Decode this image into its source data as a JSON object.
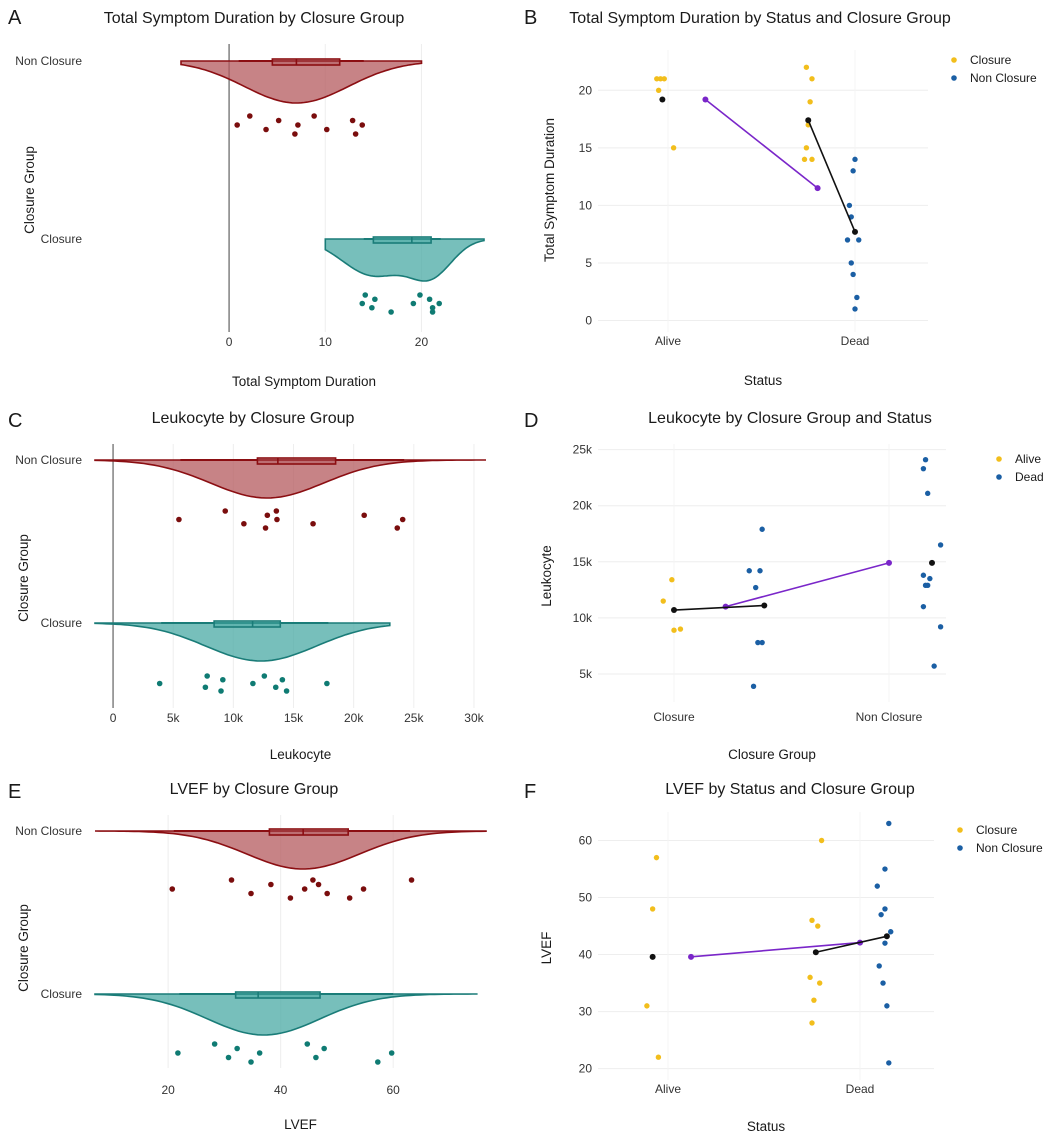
{
  "colors": {
    "non_closure_fill": "#b45a5e",
    "non_closure_line": "#8b0e12",
    "non_closure_dot": "#7a0d0d",
    "closure_fill": "#4aa9a4",
    "closure_line": "#1a7c78",
    "closure_dot": "#0f7b73",
    "yellow": "#f2be1c",
    "blue": "#1b5fa4",
    "purple": "#7a26c9",
    "black": "#111111",
    "grid": "#eeeeee"
  },
  "chart_data": [
    {
      "panel": "A",
      "type": "raincloud",
      "title": "Total Symptom Duration by Closure Group",
      "xlabel": "Total Symptom Duration",
      "ylabel": "Closure Group",
      "xlim": [
        -13,
        26.5
      ],
      "xticks": [
        {
          "v": 0,
          "label": "0"
        },
        {
          "v": 10,
          "label": "10"
        },
        {
          "v": 20,
          "label": "20"
        }
      ],
      "vline": 0,
      "groups": [
        {
          "name": "Non Closure",
          "style": "non_closure",
          "curve_x": [
            -5,
            20
          ],
          "peak": 7,
          "sd": 5.4,
          "whisker": [
            1,
            14
          ],
          "box": [
            4.5,
            11.5
          ],
          "median": 7,
          "points": [
            1,
            2,
            4,
            5,
            7,
            7,
            9,
            10,
            13,
            13,
            14
          ]
        },
        {
          "name": "Closure",
          "style": "closure",
          "curve_x": [
            10,
            26.5
          ],
          "peak": 15,
          "sd": 3.2,
          "peak2": 21,
          "sd2": 2.2,
          "w2": 0.95,
          "whisker": [
            14,
            22
          ],
          "box": [
            15,
            21
          ],
          "median": 19,
          "points": [
            14,
            14,
            15,
            15,
            17,
            19,
            20,
            21,
            21,
            21,
            22
          ]
        }
      ]
    },
    {
      "panel": "B",
      "type": "scatter",
      "title": "Total Symptom Duration by Status and Closure Group",
      "xlabel": "Status",
      "ylabel": "Total Symptom Duration",
      "categories": [
        "Alive",
        "Dead"
      ],
      "ylim": [
        -1,
        23.5
      ],
      "yticks": [
        0,
        5,
        10,
        15,
        20
      ],
      "legend": [
        {
          "label": "Closure",
          "color": "yellow"
        },
        {
          "label": "Non Closure",
          "color": "blue"
        }
      ],
      "series": [
        {
          "color": "yellow",
          "points": [
            [
              -0.06,
              21
            ],
            [
              -0.04,
              21
            ],
            [
              -0.02,
              21
            ],
            [
              -0.05,
              20
            ],
            [
              0.03,
              15
            ],
            [
              0.74,
              22
            ],
            [
              0.77,
              21
            ],
            [
              0.76,
              19
            ],
            [
              0.75,
              17
            ],
            [
              0.74,
              15
            ],
            [
              0.73,
              14
            ],
            [
              0.77,
              14
            ]
          ]
        },
        {
          "color": "blue",
          "points": [
            [
              1.0,
              14
            ],
            [
              0.99,
              13
            ],
            [
              0.97,
              10
            ],
            [
              0.98,
              9
            ],
            [
              0.96,
              7
            ],
            [
              1.02,
              7
            ],
            [
              0.98,
              5
            ],
            [
              0.99,
              4
            ],
            [
              1.01,
              2
            ],
            [
              1.0,
              1
            ]
          ]
        }
      ],
      "lines": [
        {
          "color": "purple",
          "points": [
            [
              0.2,
              19.2
            ],
            [
              0.8,
              11.5
            ]
          ]
        },
        {
          "color": "black",
          "points": [
            [
              0.75,
              17.4
            ],
            [
              1.0,
              7.7
            ]
          ]
        }
      ],
      "means": [
        {
          "x": -0.03,
          "y": 19.2
        }
      ]
    },
    {
      "panel": "C",
      "type": "raincloud",
      "title": "Leukocyte by Closure Group",
      "xlabel": "Leukocyte",
      "ylabel": "Closure Group",
      "xlim": [
        -1500,
        31000
      ],
      "xticks": [
        {
          "v": 0,
          "label": "0"
        },
        {
          "v": 5000,
          "label": "5k"
        },
        {
          "v": 10000,
          "label": "10k"
        },
        {
          "v": 15000,
          "label": "15k"
        },
        {
          "v": 20000,
          "label": "20k"
        },
        {
          "v": 25000,
          "label": "25k"
        },
        {
          "v": 30000,
          "label": "30k"
        }
      ],
      "vline": 0,
      "groups": [
        {
          "name": "Non Closure",
          "style": "non_closure",
          "curve_x": [
            -1500,
            31000
          ],
          "peak": 12800,
          "sd": 4700,
          "whisker": [
            5600,
            24200
          ],
          "box": [
            12000,
            18500
          ],
          "median": 13700,
          "points": [
            5600,
            9200,
            11000,
            12700,
            12800,
            13500,
            13700,
            16500,
            21000,
            23500,
            24200
          ]
        },
        {
          "name": "Closure",
          "style": "closure",
          "curve_x": [
            -1500,
            23000
          ],
          "peak": 12300,
          "sd": 4600,
          "whisker": [
            4000,
            17900
          ],
          "box": [
            8400,
            13900
          ],
          "median": 11600,
          "points": [
            4000,
            7700,
            7800,
            9000,
            9100,
            11500,
            12700,
            13400,
            14200,
            14300,
            17900
          ]
        }
      ]
    },
    {
      "panel": "D",
      "type": "scatter",
      "title": "Leukocyte by Closure Group and Status",
      "xlabel": "Closure Group",
      "ylabel": "Leukocyte",
      "categories": [
        "Closure",
        "Non Closure"
      ],
      "ylim": [
        2500,
        25500
      ],
      "yticks": [
        {
          "v": 5000,
          "label": "5k"
        },
        {
          "v": 10000,
          "label": "10k"
        },
        {
          "v": 15000,
          "label": "15k"
        },
        {
          "v": 20000,
          "label": "20k"
        },
        {
          "v": 25000,
          "label": "25k"
        }
      ],
      "legend": [
        {
          "label": "Alive",
          "color": "yellow"
        },
        {
          "label": "Dead",
          "color": "blue"
        }
      ],
      "series": [
        {
          "color": "yellow",
          "points": [
            [
              -0.05,
              11500
            ],
            [
              -0.01,
              13400
            ],
            [
              0.0,
              8900
            ],
            [
              0.03,
              9000
            ]
          ]
        },
        {
          "color": "blue",
          "points": [
            [
              0.35,
              14200
            ],
            [
              0.4,
              14200
            ],
            [
              0.41,
              17900
            ],
            [
              0.38,
              12700
            ],
            [
              0.39,
              7800
            ],
            [
              0.41,
              7800
            ],
            [
              0.37,
              3900
            ],
            [
              1.17,
              24100
            ],
            [
              1.16,
              23300
            ],
            [
              1.18,
              21100
            ],
            [
              1.24,
              16500
            ],
            [
              1.16,
              13800
            ],
            [
              1.19,
              13500
            ],
            [
              1.17,
              12900
            ],
            [
              1.18,
              12900
            ],
            [
              1.16,
              11000
            ],
            [
              1.24,
              9200
            ],
            [
              1.21,
              5700
            ]
          ]
        }
      ],
      "lines": [
        {
          "color": "purple",
          "points": [
            [
              0.24,
              11000
            ],
            [
              1.0,
              14900
            ]
          ]
        },
        {
          "color": "black",
          "points": [
            [
              0.0,
              10700
            ],
            [
              0.42,
              11100
            ]
          ]
        }
      ],
      "means": [
        {
          "x": 1.2,
          "y": 14900
        }
      ]
    },
    {
      "panel": "E",
      "type": "raincloud",
      "title": "LVEF by Closure Group",
      "xlabel": "LVEF",
      "ylabel": "Closure Group",
      "xlim": [
        7,
        76.5
      ],
      "xticks": [
        {
          "v": 20,
          "label": "20"
        },
        {
          "v": 40,
          "label": "40"
        },
        {
          "v": 60,
          "label": "60"
        }
      ],
      "vline": null,
      "groups": [
        {
          "name": "Non Closure",
          "style": "non_closure",
          "curve_x": [
            7,
            76.5
          ],
          "peak": 44,
          "sd": 10,
          "whisker": [
            21,
            63
          ],
          "box": [
            38,
            52
          ],
          "median": 44,
          "points": [
            21,
            31,
            35,
            38,
            42,
            44,
            46,
            48,
            47,
            52,
            55,
            63
          ]
        },
        {
          "name": "Closure",
          "style": "closure",
          "curve_x": [
            7,
            75
          ],
          "peak": 37,
          "sd": 10,
          "whisker": [
            22,
            60
          ],
          "box": [
            32,
            47
          ],
          "median": 36,
          "points": [
            22,
            28,
            31,
            32,
            35,
            36,
            45,
            46,
            48,
            57,
            60
          ]
        }
      ]
    },
    {
      "panel": "F",
      "type": "scatter",
      "title": "LVEF by Status and Closure Group",
      "xlabel": "Status",
      "ylabel": "LVEF",
      "categories": [
        "Alive",
        "Dead"
      ],
      "ylim": [
        18,
        65
      ],
      "yticks": [
        20,
        30,
        40,
        50,
        60
      ],
      "legend": [
        {
          "label": "Closure",
          "color": "yellow"
        },
        {
          "label": "Non Closure",
          "color": "blue"
        }
      ],
      "series": [
        {
          "color": "yellow",
          "points": [
            [
              -0.06,
              57
            ],
            [
              -0.08,
              48
            ],
            [
              -0.11,
              31
            ],
            [
              -0.05,
              22
            ],
            [
              0.8,
              60
            ],
            [
              0.75,
              46
            ],
            [
              0.78,
              45
            ],
            [
              0.74,
              36
            ],
            [
              0.79,
              35
            ],
            [
              0.76,
              32
            ],
            [
              0.75,
              28
            ]
          ]
        },
        {
          "color": "blue",
          "points": [
            [
              1.15,
              63
            ],
            [
              1.13,
              55
            ],
            [
              1.09,
              52
            ],
            [
              1.13,
              48
            ],
            [
              1.11,
              47
            ],
            [
              1.16,
              44
            ],
            [
              1.13,
              42
            ],
            [
              1.1,
              38
            ],
            [
              1.12,
              35
            ],
            [
              1.14,
              31
            ],
            [
              1.15,
              21
            ]
          ]
        }
      ],
      "lines": [
        {
          "color": "purple",
          "points": [
            [
              0.12,
              39.6
            ],
            [
              1.0,
              42.1
            ]
          ]
        },
        {
          "color": "black",
          "points": [
            [
              0.77,
              40.4
            ],
            [
              1.14,
              43.2
            ]
          ]
        }
      ],
      "means": [
        {
          "x": -0.08,
          "y": 39.6
        }
      ]
    }
  ]
}
